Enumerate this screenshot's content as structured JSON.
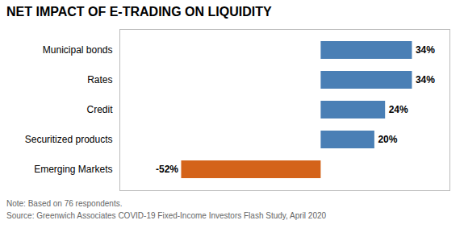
{
  "chart_data": {
    "type": "bar",
    "orientation": "horizontal",
    "title": "NET IMPACT OF E-TRADING ON LIQUIDITY",
    "categories": [
      "Municipal bonds",
      "Rates",
      "Credit",
      "Securitized products",
      "Emerging Markets"
    ],
    "values": [
      34,
      34,
      24,
      20,
      -52
    ],
    "value_labels": [
      "34%",
      "34%",
      "24%",
      "20%",
      "-52%"
    ],
    "colors": [
      "#4a7fb5",
      "#4a7fb5",
      "#4a7fb5",
      "#4a7fb5",
      "#d4631a"
    ],
    "data_labels": true,
    "xlim": [
      -75,
      48
    ],
    "tick_labels": "y",
    "grid": false,
    "annotations": [
      "Note: Based on 76 respondents.",
      "Source: Greenwich Associates COVID-19 Fixed-Income Investors Flash Study, April 2020"
    ]
  }
}
